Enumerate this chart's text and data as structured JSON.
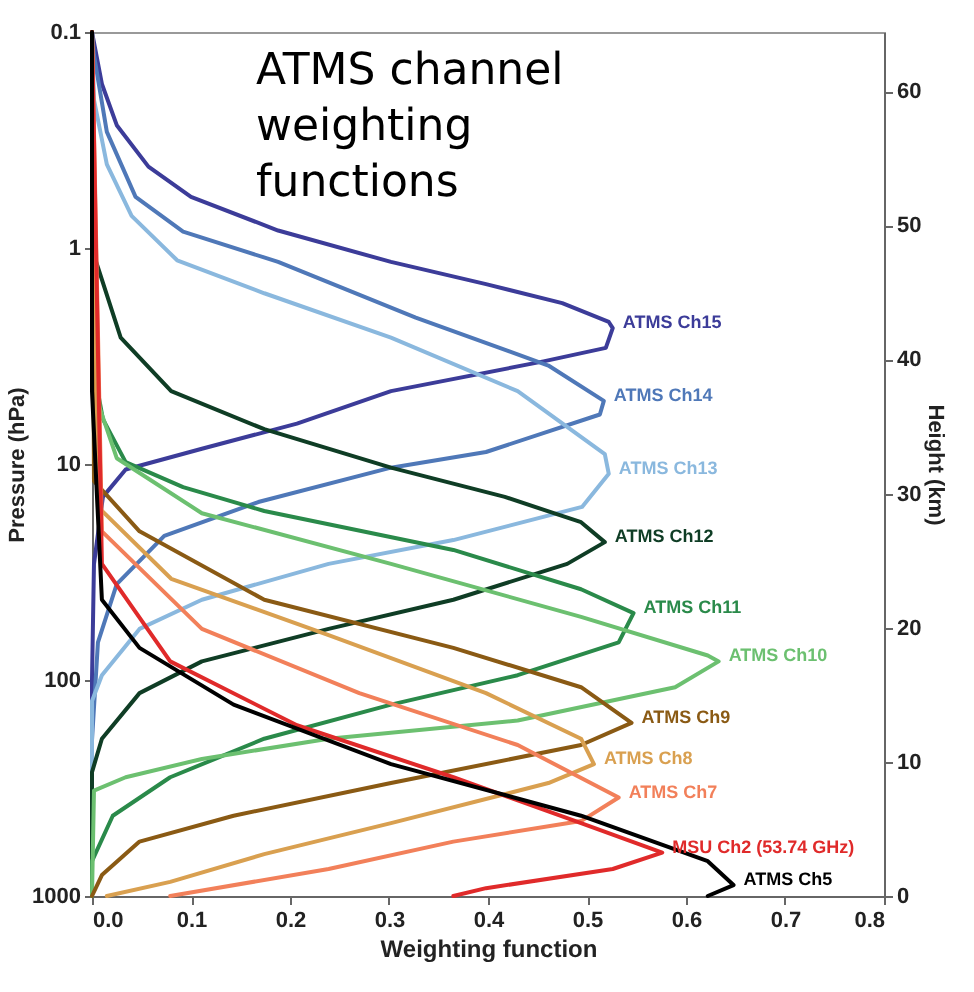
{
  "chart_data": {
    "type": "line",
    "title": "ATMS channel weighting functions",
    "xlabel": "Weighting function",
    "ylabel": "Pressure (hPa)",
    "y2label": "Height (km)",
    "xlim": [
      0,
      0.8
    ],
    "xticks": [
      {
        "value": 0,
        "label": "0.0"
      },
      0.1,
      0.2,
      0.3,
      0.4,
      0.5,
      0.6,
      0.7,
      0.8
    ],
    "ylim": [
      1000,
      0.1
    ],
    "yticks": [
      0.1,
      1,
      10,
      100,
      1000
    ],
    "log": "y",
    "y2lim": [
      0,
      64.4
    ],
    "y2ticks": [
      0,
      10,
      20,
      30,
      40,
      50,
      60
    ],
    "grid": false,
    "legend": false,
    "marker": "none",
    "line_style": "solid",
    "series": [
      {
        "name": "ATMS Ch15",
        "color": "#3c3c99",
        "x": [
          0,
          0.01,
          0.025,
          0.057,
          0.1,
          0.188,
          0.302,
          0.398,
          0.475,
          0.522,
          0.526,
          0.519,
          0.456,
          0.302,
          0.207,
          0.111,
          0.034,
          0.011,
          0.002,
          0,
          0
        ],
        "values": [
          0.1,
          0.174,
          0.27,
          0.42,
          0.58,
          0.83,
          1.16,
          1.47,
          1.8,
          2.2,
          2.35,
          2.9,
          3.35,
          4.6,
          6.5,
          8.5,
          10.6,
          14.2,
          29,
          100,
          1000
        ]
      },
      {
        "name": "ATMS Ch14",
        "color": "#4f78b8",
        "x": [
          0,
          0.002,
          0.015,
          0.044,
          0.092,
          0.188,
          0.327,
          0.461,
          0.517,
          0.513,
          0.398,
          0.302,
          0.168,
          0.073,
          0.025,
          0.006,
          0,
          0
        ],
        "values": [
          0.1,
          0.128,
          0.29,
          0.58,
          0.84,
          1.16,
          2.1,
          3.5,
          5.1,
          5.9,
          8.8,
          10.4,
          15,
          21.5,
          36,
          67,
          190,
          1000
        ]
      },
      {
        "name": "ATMS Ch13",
        "color": "#8ab8de",
        "x": [
          0,
          0.002,
          0.015,
          0.04,
          0.086,
          0.174,
          0.302,
          0.43,
          0.518,
          0.522,
          0.495,
          0.365,
          0.239,
          0.111,
          0.048,
          0.01,
          0,
          0
        ],
        "values": [
          0.1,
          0.206,
          0.41,
          0.71,
          1.14,
          1.62,
          2.6,
          4.6,
          9,
          11.1,
          15.8,
          22.5,
          29,
          42.5,
          58,
          95,
          125,
          1000
        ]
      },
      {
        "name": "ATMS Ch12",
        "color": "#0f3d25",
        "x": [
          0,
          0.002,
          0.029,
          0.08,
          0.174,
          0.302,
          0.417,
          0.494,
          0.518,
          0.48,
          0.365,
          0.239,
          0.111,
          0.048,
          0.01,
          0,
          0
        ],
        "values": [
          0.1,
          1.08,
          2.6,
          4.6,
          6.9,
          10.4,
          14.2,
          18.6,
          23,
          29,
          42.5,
          58,
          82,
          115,
          187,
          267,
          1000
        ]
      },
      {
        "name": "ATMS Ch11",
        "color": "#2a8a4a",
        "x": [
          0,
          0.002,
          0.011,
          0.034,
          0.092,
          0.174,
          0.365,
          0.494,
          0.547,
          0.532,
          0.43,
          0.302,
          0.174,
          0.079,
          0.021,
          0,
          0
        ],
        "values": [
          0.1,
          3.7,
          6.2,
          9.8,
          12.8,
          16.5,
          25,
          38,
          49,
          67,
          95,
          130,
          187,
          282,
          425,
          690,
          1000
        ]
      },
      {
        "name": "ATMS Ch10",
        "color": "#6cc070",
        "x": [
          0,
          0.002,
          0.025,
          0.111,
          0.302,
          0.494,
          0.622,
          0.633,
          0.589,
          0.43,
          0.239,
          0.111,
          0.034,
          0.002,
          0
        ],
        "values": [
          0.1,
          4.6,
          9.4,
          16.9,
          29,
          51,
          77,
          82,
          108,
          154,
          187,
          232,
          282,
          325,
          1000
        ]
      },
      {
        "name": "ATMS Ch9",
        "color": "#8a5a14",
        "x": [
          0,
          0.002,
          0.048,
          0.174,
          0.365,
          0.494,
          0.545,
          0.494,
          0.302,
          0.143,
          0.048,
          0.01,
          0
        ],
        "values": [
          0.1,
          12,
          20.5,
          42.5,
          71,
          108,
          158,
          200,
          300,
          425,
          560,
          800,
          1000
        ]
      },
      {
        "name": "ATMS Ch8",
        "color": "#d9a050",
        "x": [
          0,
          0.006,
          0.08,
          0.239,
          0.398,
          0.494,
          0.507,
          0.461,
          0.302,
          0.174,
          0.079,
          0.015
        ],
        "values": [
          0.1,
          15.8,
          34,
          62,
          115,
          187,
          245,
          300,
          460,
          640,
          860,
          1000
        ]
      },
      {
        "name": "ATMS Ch7",
        "color": "#f2805a",
        "x": [
          0,
          0.01,
          0.111,
          0.27,
          0.43,
          0.532,
          0.494,
          0.365,
          0.239,
          0.079
        ],
        "values": [
          0.1,
          20.5,
          58,
          115,
          200,
          350,
          450,
          560,
          750,
          1000
        ]
      },
      {
        "name": "MSU Ch2 (53.74 GHz)",
        "color": "#e02a2a",
        "x": [
          0,
          0.01,
          0.079,
          0.207,
          0.365,
          0.494,
          0.576,
          0.526,
          0.398,
          0.365
        ],
        "values": [
          0.1,
          29,
          82,
          162,
          282,
          460,
          630,
          750,
          920,
          1000
        ]
      },
      {
        "name": "ATMS Ch5",
        "color": "#000000",
        "x": [
          0,
          0,
          0.01,
          0.048,
          0.143,
          0.302,
          0.494,
          0.622,
          0.648,
          0.622
        ],
        "values": [
          0.1,
          4.6,
          42.5,
          71,
          130,
          245,
          425,
          690,
          890,
          1000
        ]
      }
    ]
  }
}
